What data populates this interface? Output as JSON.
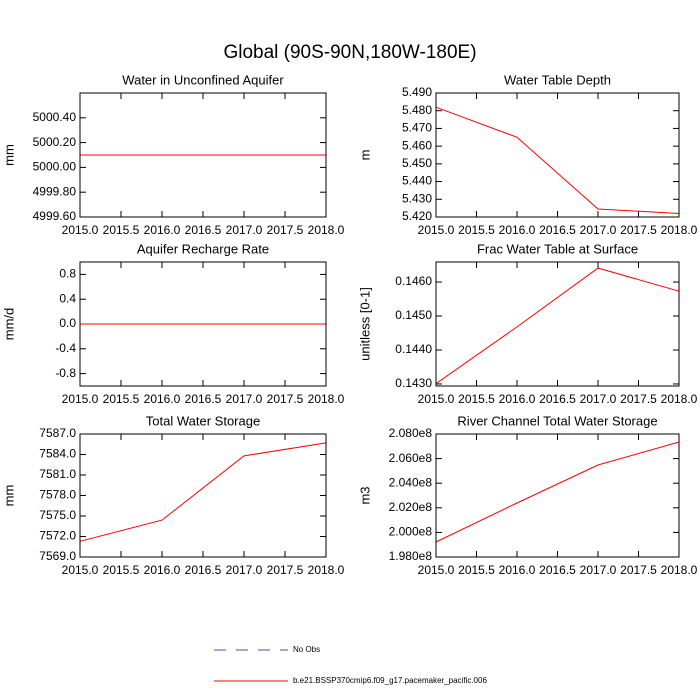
{
  "title": "Global (90S-90N,180W-180E)",
  "legend": [
    {
      "name": "No Obs",
      "color": "#5a4e9c",
      "dash": true
    },
    {
      "name": "b.e21.BSSP370cmip6.f09_g17.pacemaker_pacific.006",
      "color": "#ff0000",
      "dash": false
    }
  ],
  "chart_data": [
    {
      "type": "line",
      "title": "Water in Unconfined Aquifer",
      "y_label": "mm",
      "x": [
        2015,
        2016,
        2017,
        2018
      ],
      "values": [
        5000.1,
        5000.1,
        5000.1,
        5000.1
      ],
      "color": "#ff0000",
      "xlim": [
        2015,
        2018
      ],
      "xticks": [
        {
          "value": 2015,
          "label": "2015.0"
        },
        {
          "value": 2015.5,
          "label": "2015.5"
        },
        {
          "value": 2016,
          "label": "2016.0"
        },
        {
          "value": 2016.5,
          "label": "2016.5"
        },
        {
          "value": 2017,
          "label": "2017.0"
        },
        {
          "value": 2017.5,
          "label": "2017.5"
        },
        {
          "value": 2018,
          "label": "2018.0"
        }
      ],
      "ylim": [
        4999.6,
        5000.6
      ],
      "yticks": [
        {
          "value": 4999.6,
          "label": "4999.60"
        },
        {
          "value": 4999.8,
          "label": "4999.80"
        },
        {
          "value": 5000,
          "label": "5000.00"
        },
        {
          "value": 5000.2,
          "label": "5000.20"
        },
        {
          "value": 5000.4,
          "label": "5000.40"
        }
      ]
    },
    {
      "type": "line",
      "title": "Water Table Depth",
      "y_label": "m",
      "x": [
        2015,
        2016,
        2017,
        2018
      ],
      "values": [
        5.482,
        5.465,
        5.4245,
        5.422
      ],
      "color": "#ff0000",
      "xlim": [
        2015,
        2018
      ],
      "xticks": [
        {
          "value": 2015,
          "label": "2015.0"
        },
        {
          "value": 2015.5,
          "label": "2015.5"
        },
        {
          "value": 2016,
          "label": "2016.0"
        },
        {
          "value": 2016.5,
          "label": "2016.5"
        },
        {
          "value": 2017,
          "label": "2017.0"
        },
        {
          "value": 2017.5,
          "label": "2017.5"
        },
        {
          "value": 2018,
          "label": "2018.0"
        }
      ],
      "ylim": [
        5.42,
        5.49
      ],
      "yticks": [
        {
          "value": 5.42,
          "label": "5.420"
        },
        {
          "value": 5.43,
          "label": "5.430"
        },
        {
          "value": 5.44,
          "label": "5.440"
        },
        {
          "value": 5.45,
          "label": "5.450"
        },
        {
          "value": 5.46,
          "label": "5.460"
        },
        {
          "value": 5.47,
          "label": "5.470"
        },
        {
          "value": 5.48,
          "label": "5.480"
        },
        {
          "value": 5.49,
          "label": "5.490"
        }
      ]
    },
    {
      "type": "line",
      "title": "Aquifer Recharge Rate",
      "y_label": "mm/d",
      "x": [
        2015,
        2016,
        2017,
        2018
      ],
      "values": [
        0,
        0,
        0,
        0
      ],
      "color": "#ff0000",
      "xlim": [
        2015,
        2018
      ],
      "xticks": [
        {
          "value": 2015,
          "label": "2015.0"
        },
        {
          "value": 2015.5,
          "label": "2015.5"
        },
        {
          "value": 2016,
          "label": "2016.0"
        },
        {
          "value": 2016.5,
          "label": "2016.5"
        },
        {
          "value": 2017,
          "label": "2017.0"
        },
        {
          "value": 2017.5,
          "label": "2017.5"
        },
        {
          "value": 2018,
          "label": "2018.0"
        }
      ],
      "ylim": [
        -1,
        1
      ],
      "yticks": [
        -0.8,
        -0.4,
        {
          "value": 0,
          "label": "0.0"
        },
        0.4,
        0.8
      ]
    },
    {
      "type": "line",
      "title": "Frac Water Table at Surface",
      "y_label": "unitless [0-1]",
      "x": [
        2015,
        2016,
        2017,
        2018
      ],
      "values": [
        0.14301,
        0.14468,
        0.14641,
        0.14573
      ],
      "color": "#ff0000",
      "xlim": [
        2015,
        2018
      ],
      "xticks": [
        {
          "value": 2015,
          "label": "2015.0"
        },
        {
          "value": 2015.5,
          "label": "2015.5"
        },
        {
          "value": 2016,
          "label": "2016.0"
        },
        {
          "value": 2016.5,
          "label": "2016.5"
        },
        {
          "value": 2017,
          "label": "2017.0"
        },
        {
          "value": 2017.5,
          "label": "2017.5"
        },
        {
          "value": 2018,
          "label": "2018.0"
        }
      ],
      "ylim": [
        0.14294,
        0.14659
      ],
      "yticks": [
        {
          "value": 0.143,
          "label": "0.1430"
        },
        {
          "value": 0.144,
          "label": "0.1440"
        },
        {
          "value": 0.145,
          "label": "0.1450"
        },
        {
          "value": 0.146,
          "label": "0.1460"
        }
      ]
    },
    {
      "type": "line",
      "title": "Total Water Storage",
      "y_label": "mm",
      "x": [
        2015,
        2016,
        2017,
        2018
      ],
      "values": [
        7571.3,
        7574.4,
        7583.8,
        7585.7
      ],
      "color": "#ff0000",
      "xlim": [
        2015,
        2018
      ],
      "xticks": [
        {
          "value": 2015,
          "label": "2015.0"
        },
        {
          "value": 2015.5,
          "label": "2015.5"
        },
        {
          "value": 2016,
          "label": "2016.0"
        },
        {
          "value": 2016.5,
          "label": "2016.5"
        },
        {
          "value": 2017,
          "label": "2017.0"
        },
        {
          "value": 2017.5,
          "label": "2017.5"
        },
        {
          "value": 2018,
          "label": "2018.0"
        }
      ],
      "ylim": [
        7569,
        7587
      ],
      "yticks": [
        {
          "value": 7569,
          "label": "7569.0"
        },
        {
          "value": 7572,
          "label": "7572.0"
        },
        {
          "value": 7575,
          "label": "7575.0"
        },
        {
          "value": 7578,
          "label": "7578.0"
        },
        {
          "value": 7581,
          "label": "7581.0"
        },
        {
          "value": 7584,
          "label": "7584.0"
        },
        {
          "value": 7587,
          "label": "7587.0"
        }
      ]
    },
    {
      "type": "line",
      "title": "River Channel Total Water Storage",
      "y_label": "m3",
      "x": [
        2015,
        2016,
        2017,
        2018
      ],
      "values": [
        199220000,
        202390000,
        205480000,
        207350000
      ],
      "color": "#ff0000",
      "xlim": [
        2015,
        2018
      ],
      "xticks": [
        {
          "value": 2015,
          "label": "2015.0"
        },
        {
          "value": 2015.5,
          "label": "2015.5"
        },
        {
          "value": 2016,
          "label": "2016.0"
        },
        {
          "value": 2016.5,
          "label": "2016.5"
        },
        {
          "value": 2017,
          "label": "2017.0"
        },
        {
          "value": 2017.5,
          "label": "2017.5"
        },
        {
          "value": 2018,
          "label": "2018.0"
        }
      ],
      "ylim": [
        198000000,
        208000000
      ],
      "yticks": [
        {
          "value": 198000000,
          "label": "1.980e8"
        },
        {
          "value": 200000000,
          "label": "2.000e8"
        },
        {
          "value": 202000000,
          "label": "2.020e8"
        },
        {
          "value": 204000000,
          "label": "2.040e8"
        },
        {
          "value": 206000000,
          "label": "2.060e8"
        },
        {
          "value": 208000000,
          "label": "2.080e8"
        }
      ]
    }
  ]
}
